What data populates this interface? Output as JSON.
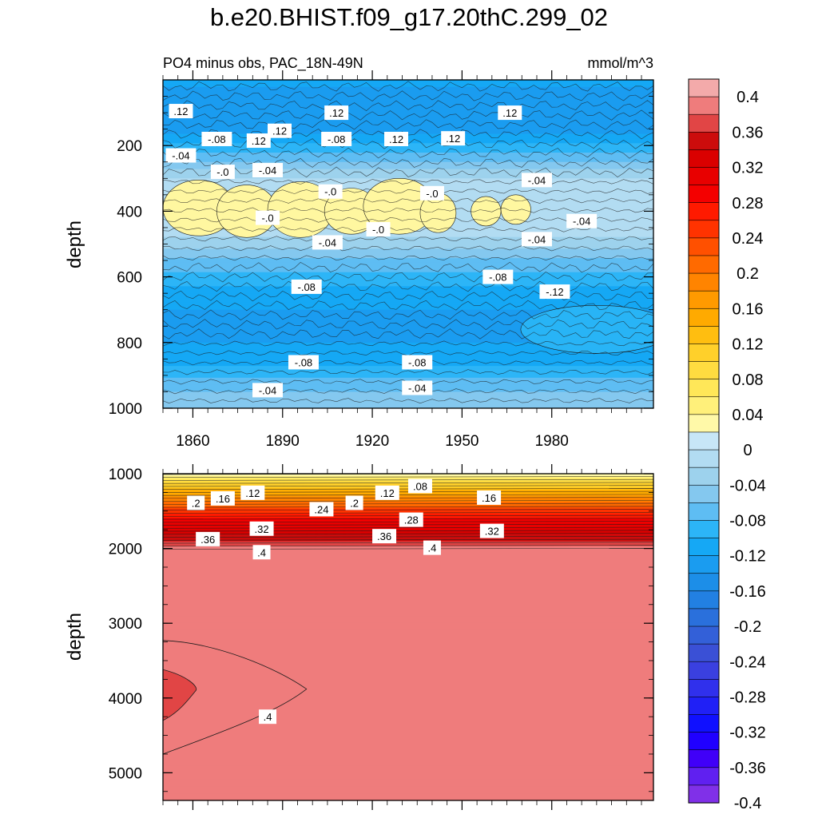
{
  "title": "b.e20.BHIST.f09_g17.20thC.299_02",
  "chart_data": [
    {
      "type": "heatmap",
      "panel": "upper",
      "left_subtitle": "PO4 minus obs, PAC_18N-49N",
      "right_subtitle": "mmol/m^3",
      "xlabel": "",
      "ylabel": "depth",
      "xlim": [
        1850,
        2014
      ],
      "ylim": [
        0,
        1000
      ],
      "y_reversed": true,
      "xticks": [
        1860,
        1890,
        1920,
        1950,
        1980
      ],
      "xtick_labels": [
        "1860",
        "1890",
        "1920",
        "1950",
        "1980"
      ],
      "yticks": [
        200,
        400,
        600,
        800,
        1000
      ],
      "ytick_labels": [
        "200",
        "400",
        "600",
        "800",
        "1000"
      ],
      "depth_profile": [
        {
          "depth": 0,
          "value": -0.1
        },
        {
          "depth": 60,
          "value": -0.13
        },
        {
          "depth": 150,
          "value": -0.12
        },
        {
          "depth": 220,
          "value": -0.07
        },
        {
          "depth": 300,
          "value": -0.01
        },
        {
          "depth": 400,
          "value": 0.005
        },
        {
          "depth": 480,
          "value": -0.01
        },
        {
          "depth": 560,
          "value": -0.06
        },
        {
          "depth": 650,
          "value": -0.1
        },
        {
          "depth": 750,
          "value": -0.12
        },
        {
          "depth": 850,
          "value": -0.1
        },
        {
          "depth": 930,
          "value": -0.06
        },
        {
          "depth": 1000,
          "value": -0.03
        }
      ],
      "contour_labels": [
        {
          "text": ".12",
          "x": 1856,
          "y": 95
        },
        {
          "text": "-.04",
          "x": 1856,
          "y": 230
        },
        {
          "text": "-.08",
          "x": 1868,
          "y": 180
        },
        {
          "text": "-.0",
          "x": 1870,
          "y": 280
        },
        {
          "text": ".12",
          "x": 1882,
          "y": 185
        },
        {
          "text": ".12",
          "x": 1889,
          "y": 155
        },
        {
          "text": "-.04",
          "x": 1885,
          "y": 275
        },
        {
          "text": "-.0",
          "x": 1885,
          "y": 420
        },
        {
          "text": ".12",
          "x": 1908,
          "y": 100
        },
        {
          "text": "-.08",
          "x": 1908,
          "y": 180
        },
        {
          "text": "-.0",
          "x": 1906,
          "y": 340
        },
        {
          "text": "-.04",
          "x": 1905,
          "y": 495
        },
        {
          "text": ".12",
          "x": 1928,
          "y": 180
        },
        {
          "text": "-.0",
          "x": 1922,
          "y": 455
        },
        {
          "text": "-.0",
          "x": 1940,
          "y": 345
        },
        {
          "text": ".12",
          "x": 1947,
          "y": 178
        },
        {
          "text": ".12",
          "x": 1966,
          "y": 100
        },
        {
          "text": "-.04",
          "x": 1975,
          "y": 305
        },
        {
          "text": "-.04",
          "x": 1975,
          "y": 485
        },
        {
          "text": "-.04",
          "x": 1990,
          "y": 430
        },
        {
          "text": "-.08",
          "x": 1962,
          "y": 600
        },
        {
          "text": "-.12",
          "x": 1981,
          "y": 645
        },
        {
          "text": "-.08",
          "x": 1898,
          "y": 630
        },
        {
          "text": "-.08",
          "x": 1897,
          "y": 860
        },
        {
          "text": "-.08",
          "x": 1935,
          "y": 860
        },
        {
          "text": "-.04",
          "x": 1885,
          "y": 945
        },
        {
          "text": "-.04",
          "x": 1935,
          "y": 938
        }
      ]
    },
    {
      "type": "heatmap",
      "panel": "lower",
      "xlabel": "",
      "ylabel": "depth",
      "xlim": [
        1850,
        2014
      ],
      "ylim": [
        1000,
        5370
      ],
      "y_reversed": true,
      "yticks": [
        1000,
        2000,
        3000,
        4000,
        5000
      ],
      "ytick_labels": [
        "1000",
        "2000",
        "3000",
        "4000",
        "5000"
      ],
      "depth_profile": [
        {
          "depth": 1000,
          "value": 0.04
        },
        {
          "depth": 1100,
          "value": 0.1
        },
        {
          "depth": 1300,
          "value": 0.18
        },
        {
          "depth": 1500,
          "value": 0.26
        },
        {
          "depth": 1700,
          "value": 0.32
        },
        {
          "depth": 1900,
          "value": 0.37
        },
        {
          "depth": 2050,
          "value": 0.41
        },
        {
          "depth": 5370,
          "value": 0.41
        }
      ],
      "contour_labels": [
        {
          "text": ".2",
          "x": 1861,
          "y": 1390
        },
        {
          "text": ".16",
          "x": 1870,
          "y": 1330
        },
        {
          "text": ".12",
          "x": 1880,
          "y": 1255
        },
        {
          "text": ".24",
          "x": 1903,
          "y": 1475
        },
        {
          "text": ".2",
          "x": 1914,
          "y": 1390
        },
        {
          "text": ".12",
          "x": 1925,
          "y": 1255
        },
        {
          "text": ".08",
          "x": 1936,
          "y": 1165
        },
        {
          "text": ".28",
          "x": 1933,
          "y": 1615
        },
        {
          "text": ".16",
          "x": 1959,
          "y": 1320
        },
        {
          "text": ".36",
          "x": 1865,
          "y": 1875
        },
        {
          "text": ".32",
          "x": 1883,
          "y": 1735
        },
        {
          "text": ".36",
          "x": 1924,
          "y": 1835
        },
        {
          "text": ".32",
          "x": 1960,
          "y": 1765
        },
        {
          "text": ".4",
          "x": 1883,
          "y": 2050
        },
        {
          "text": ".4",
          "x": 1940,
          "y": 1990
        },
        {
          "text": ".4",
          "x": 1885,
          "y": 4250
        }
      ]
    }
  ],
  "colorbar": {
    "levels": [
      "0.4",
      "0.36",
      "0.32",
      "0.28",
      "0.24",
      "0.2",
      "0.16",
      "0.12",
      "0.08",
      "0.04",
      "0",
      "-0.04",
      "-0.08",
      "-0.12",
      "-0.16",
      "-0.2",
      "-0.24",
      "-0.28",
      "-0.32",
      "-0.36",
      "-0.4"
    ],
    "colors": [
      "#f3aaaa",
      "#ef7c7c",
      "#e14545",
      "#cc0c0c",
      "#da0000",
      "#e80000",
      "#f40000",
      "#ff1a00",
      "#ff3300",
      "#ff5000",
      "#ff6a00",
      "#ff8400",
      "#ff9a00",
      "#ffaa00",
      "#ffbe10",
      "#ffd02a",
      "#ffdc40",
      "#ffe758",
      "#fff07a",
      "#fff9a8",
      "#c7e6f7",
      "#b2dcf2",
      "#9dd2ed",
      "#84c8ef",
      "#5ebdf3",
      "#2cb5f7",
      "#15a8f5",
      "#1a9cf0",
      "#1c8ee8",
      "#2280e2",
      "#2a70dc",
      "#3360d8",
      "#3a50d6",
      "#3a40e0",
      "#3030ec",
      "#2020f6",
      "#1010ff",
      "#2000ff",
      "#4000f8",
      "#6020f0",
      "#8030e8"
    ]
  }
}
